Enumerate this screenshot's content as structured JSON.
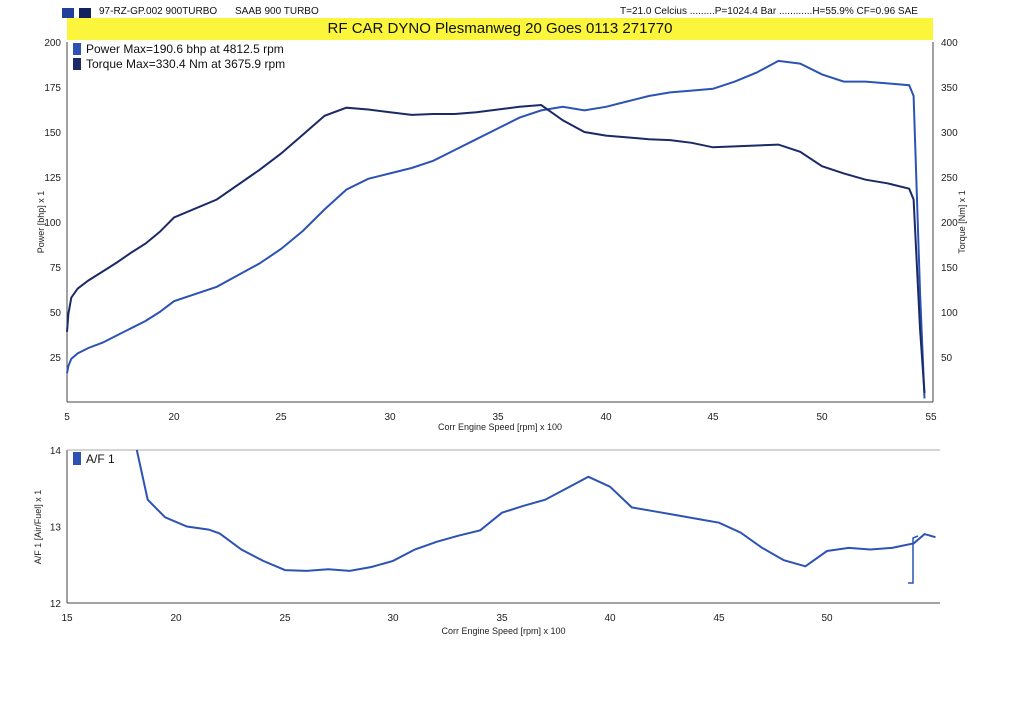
{
  "header": {
    "run_id": "97-RZ-GP.002 900TURBO",
    "vehicle": "SAAB 900 TURBO",
    "conditions": "T=21.0 Celcius .........P=1024.4 Bar ............H=55.9% CF=0.96 SAE",
    "title": "RF CAR DYNO  Plesmanweg 20 Goes  0113 271770",
    "square_colors": [
      "#1f3f9a",
      "#13215c"
    ]
  },
  "chart_data": [
    {
      "type": "line",
      "xlabel": "Corr Engine Speed [rpm] x 100",
      "ylabel": "Power [bhp] x 1",
      "y2label": "Torque [Nm] x 1",
      "xlim": [
        5,
        55
      ],
      "ylim": [
        0,
        200
      ],
      "y2lim": [
        0,
        400
      ],
      "x_ticks": [
        "5",
        "20",
        "25",
        "30",
        "35",
        "40",
        "45",
        "50",
        "55"
      ],
      "y_ticks": [
        "25",
        "50",
        "75",
        "100",
        "125",
        "150",
        "175",
        "200"
      ],
      "y2_ticks": [
        "50",
        "100",
        "150",
        "200",
        "250",
        "300",
        "350",
        "400"
      ],
      "grid": false,
      "legend": "top-left",
      "series": [
        {
          "name": "Power  Max=190.6 bhp at 4812.5 rpm",
          "axis": "left",
          "color": "#2c53b4",
          "x": [
            5,
            5.2,
            5.6,
            6.5,
            8,
            10,
            12,
            14,
            16,
            18,
            20,
            22,
            24,
            25,
            26,
            27,
            28,
            29,
            30,
            31,
            32,
            33,
            34,
            35,
            36,
            37,
            38,
            39,
            40,
            41,
            42,
            43,
            44,
            45,
            46,
            47,
            48,
            49,
            50,
            51,
            52,
            53,
            54,
            54.2,
            54.5,
            54.7
          ],
          "values": [
            16,
            20,
            24,
            27,
            30,
            33,
            37,
            41,
            45,
            50,
            56,
            64,
            77,
            85,
            95,
            107,
            118,
            124,
            127,
            130,
            134,
            140,
            146,
            152,
            158,
            162,
            164,
            162,
            164,
            167,
            170,
            172,
            173,
            174,
            178,
            183,
            189.5,
            188,
            182,
            178,
            178,
            177,
            176,
            170,
            60,
            2
          ]
        },
        {
          "name": "Torque  Max=330.4 Nm at 3675.9 rpm",
          "axis": "right",
          "color": "#1b2a66",
          "x": [
            5,
            5.2,
            5.6,
            6.5,
            8,
            10,
            12,
            14,
            16,
            18,
            20,
            22,
            24,
            25,
            26,
            27,
            28,
            29,
            30,
            31,
            32,
            33,
            34,
            35,
            36,
            37,
            38,
            39,
            40,
            41,
            42,
            43,
            44,
            45,
            46,
            47,
            48,
            49,
            50,
            51,
            52,
            53,
            54,
            54.2,
            54.5,
            54.7
          ],
          "values": [
            78,
            98,
            116,
            126,
            135,
            145,
            155,
            166,
            176,
            189,
            205,
            225,
            258,
            276,
            297,
            318,
            327,
            325,
            322,
            319,
            320,
            320,
            322,
            325,
            328,
            330,
            313,
            300,
            296,
            294,
            292,
            291,
            288,
            283,
            284,
            285,
            286,
            278,
            262,
            254,
            247,
            243,
            237,
            225,
            80,
            10
          ]
        }
      ]
    },
    {
      "type": "line",
      "xlabel": "Corr Engine Speed [rpm] x 100",
      "ylabel": "A/F 1 [Air/Fuel] x 1",
      "xlim": [
        15,
        55
      ],
      "ylim": [
        12,
        14
      ],
      "x_ticks": [
        "15",
        "20",
        "25",
        "30",
        "35",
        "40",
        "45",
        "50"
      ],
      "y_ticks": [
        "12",
        "13",
        "14"
      ],
      "grid": false,
      "legend": "top-left",
      "series": [
        {
          "name": "A/F 1",
          "color": "#2c53b4",
          "x": [
            18.2,
            18.7,
            19.5,
            20.5,
            21.5,
            22,
            23,
            24,
            25,
            26,
            27,
            28,
            29,
            30,
            31,
            32,
            33,
            34,
            35,
            36,
            37,
            38,
            39,
            40,
            41,
            42,
            43,
            44,
            45,
            46,
            47,
            48,
            49,
            50,
            51,
            52,
            53,
            54,
            54.5,
            55
          ],
          "values": [
            14,
            13.35,
            13.12,
            13.0,
            12.96,
            12.91,
            12.7,
            12.55,
            12.43,
            12.42,
            12.44,
            12.42,
            12.47,
            12.55,
            12.7,
            12.8,
            12.88,
            12.95,
            13.18,
            13.27,
            13.35,
            13.5,
            13.65,
            13.52,
            13.25,
            13.2,
            13.15,
            13.1,
            13.05,
            12.92,
            12.72,
            12.56,
            12.48,
            12.68,
            12.72,
            12.7,
            12.72,
            12.78,
            12.9,
            12.86
          ]
        }
      ]
    }
  ]
}
